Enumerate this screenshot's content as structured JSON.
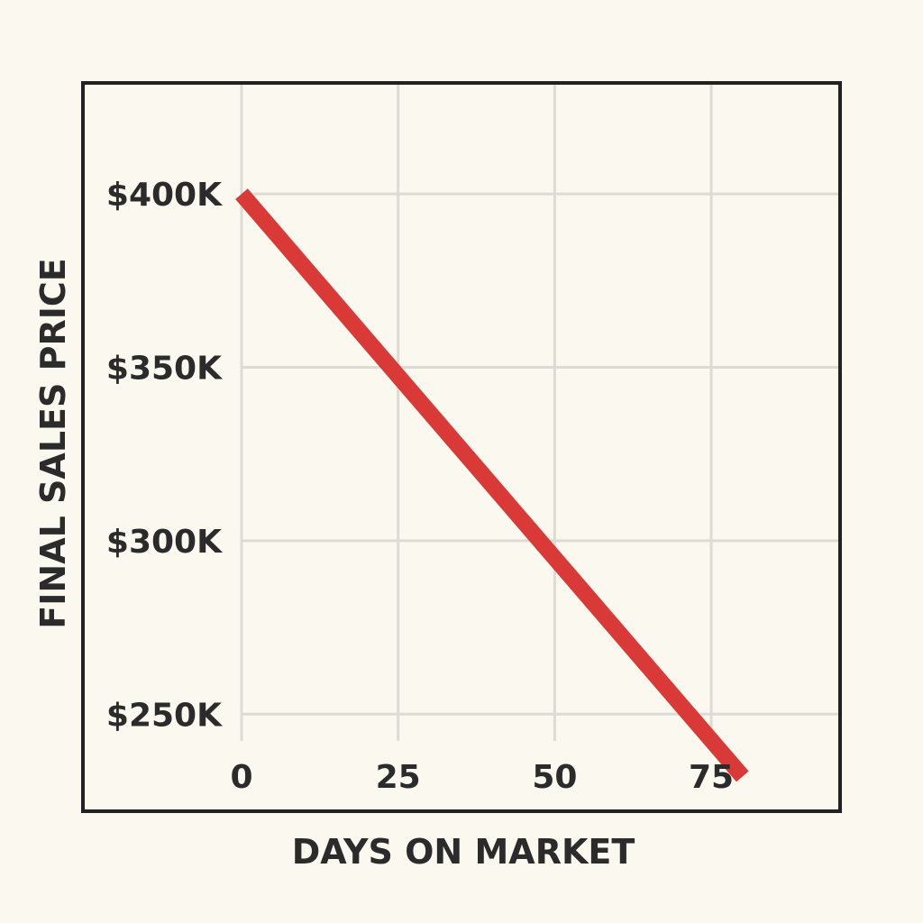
{
  "chart_data": {
    "type": "line",
    "title": "",
    "xlabel": "DAYS ON MARKET",
    "ylabel": "FINAL SALES PRICE",
    "x_ticks": [
      0,
      25,
      50,
      75
    ],
    "x_tick_labels": [
      "0",
      "25",
      "50",
      "75"
    ],
    "y_ticks": [
      250000,
      300000,
      350000,
      400000
    ],
    "y_tick_labels": [
      "$250K",
      "$300K",
      "$350K",
      "$400K"
    ],
    "xlim": [
      0,
      95
    ],
    "ylim": [
      222000,
      432000
    ],
    "grid": true,
    "legend": "none",
    "series": [
      {
        "color": "#d93a37",
        "x": [
          0,
          80
        ],
        "y": [
          400000,
          232000
        ]
      }
    ],
    "colors": {
      "background": "#fbf8f0",
      "frame": "#222222",
      "grid": "#dddbd3",
      "line": "#d93a37",
      "text": "#2b2b2b"
    }
  }
}
